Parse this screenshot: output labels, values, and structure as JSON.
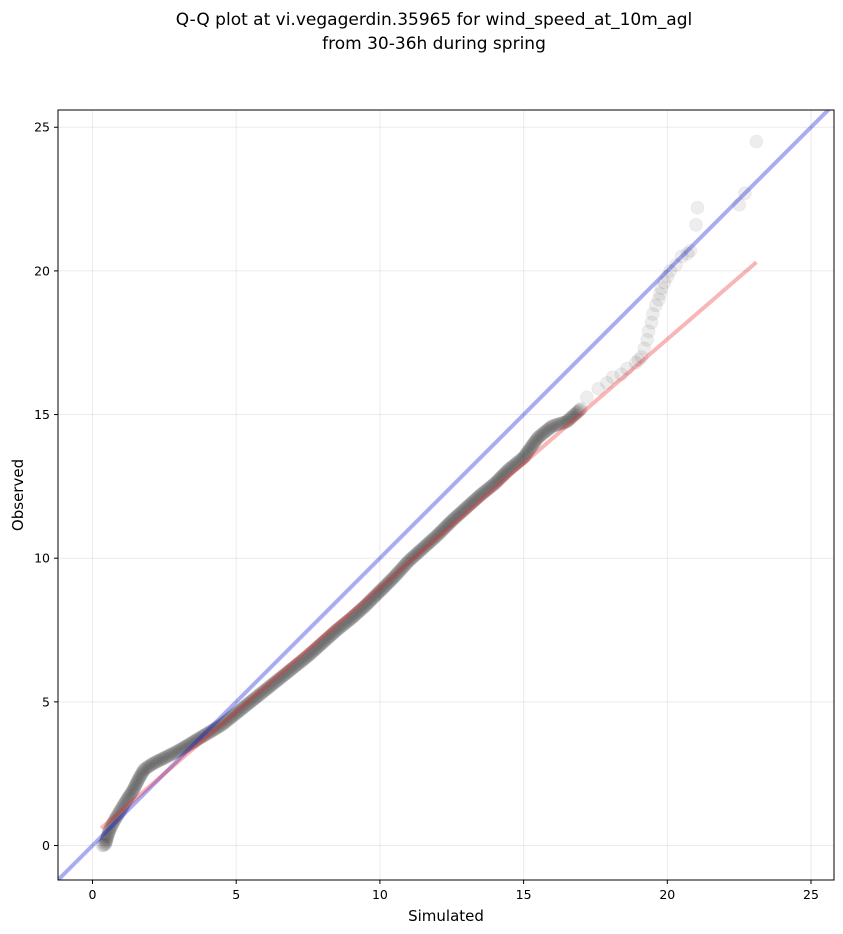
{
  "chart_data": {
    "type": "scatter",
    "title_lines": [
      "Q-Q plot at vi.vegagerdin.35965 for wind_speed_at_10m_agl",
      "from 30-36h during spring"
    ],
    "xlabel": "Simulated",
    "ylabel": "Observed",
    "xlim": [
      -1.2,
      25.8
    ],
    "ylim": [
      -1.2,
      25.6
    ],
    "xticks": [
      0,
      5,
      10,
      15,
      20,
      25
    ],
    "yticks": [
      0,
      5,
      10,
      15,
      20,
      25
    ],
    "grid": true,
    "reference_line": {
      "description": "y = x",
      "color": "#0000dd"
    },
    "fit_line": {
      "x": [
        0.3,
        23.1
      ],
      "y": [
        0.6,
        20.3
      ],
      "color": "#ee2222"
    },
    "points_color": "#000000",
    "quantile_curve": {
      "x": [
        0.35,
        0.45,
        0.5,
        0.6,
        0.75,
        0.9,
        1.05,
        1.2,
        1.4,
        1.6,
        1.8,
        2.1,
        2.5,
        3.0,
        3.5,
        4.0,
        4.5,
        5.0,
        5.5,
        6.0,
        6.5,
        7.0,
        7.5,
        8.0,
        8.5,
        9.0,
        9.5,
        10.0,
        10.5,
        11.0,
        11.5,
        12.0,
        12.5,
        13.0,
        13.5,
        14.0,
        14.5,
        15.0,
        15.5,
        16.0,
        16.5,
        17.0
      ],
      "y": [
        0.0,
        0.05,
        0.25,
        0.55,
        0.85,
        1.1,
        1.35,
        1.6,
        1.9,
        2.3,
        2.65,
        2.85,
        3.05,
        3.3,
        3.6,
        3.9,
        4.2,
        4.6,
        5.0,
        5.4,
        5.8,
        6.2,
        6.6,
        7.05,
        7.5,
        7.9,
        8.35,
        8.85,
        9.35,
        9.9,
        10.35,
        10.8,
        11.3,
        11.75,
        12.2,
        12.6,
        13.1,
        13.5,
        14.2,
        14.6,
        14.75,
        15.2
      ]
    },
    "tail_points": {
      "x": [
        17.2,
        17.6,
        17.9,
        18.1,
        18.4,
        18.6,
        18.9,
        19.0,
        19.1,
        19.2,
        19.3,
        19.35,
        19.45,
        19.5,
        19.6,
        19.7,
        19.75,
        19.8,
        19.9,
        20.0,
        20.1,
        20.3,
        20.5,
        20.7,
        20.8,
        21.0,
        21.05,
        22.5,
        22.7,
        23.1
      ],
      "y": [
        15.6,
        15.9,
        16.1,
        16.3,
        16.4,
        16.6,
        16.8,
        16.9,
        17.0,
        17.3,
        17.6,
        17.9,
        18.2,
        18.5,
        18.8,
        19.0,
        19.2,
        19.4,
        19.6,
        19.8,
        20.0,
        20.2,
        20.5,
        20.6,
        20.7,
        21.6,
        22.2,
        22.3,
        22.7,
        24.5
      ]
    }
  }
}
